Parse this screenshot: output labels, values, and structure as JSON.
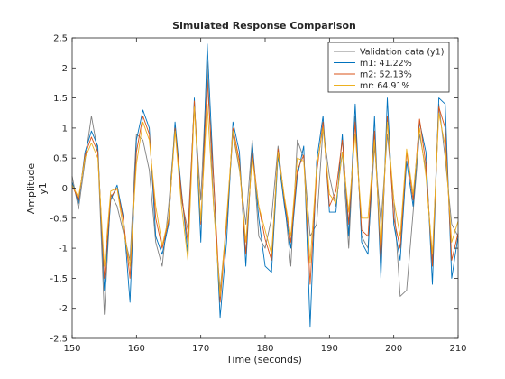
{
  "chart_data": {
    "type": "line",
    "title": "Simulated Response Comparison",
    "xlabel": "Time (seconds)",
    "ylabel": "Amplitude",
    "channel_label": "y1",
    "xlim": [
      150,
      210
    ],
    "ylim": [
      -2.5,
      2.5
    ],
    "xticks": [
      150,
      160,
      170,
      180,
      190,
      200,
      210
    ],
    "yticks": [
      -2.5,
      -2,
      -1.5,
      -1,
      -0.5,
      0,
      0.5,
      1,
      1.5,
      2,
      2.5
    ],
    "x": [
      150,
      151,
      152,
      153,
      154,
      155,
      156,
      157,
      158,
      159,
      160,
      161,
      162,
      163,
      164,
      165,
      166,
      167,
      168,
      169,
      170,
      171,
      172,
      173,
      174,
      175,
      176,
      177,
      178,
      179,
      180,
      181,
      182,
      183,
      184,
      185,
      186,
      187,
      188,
      189,
      190,
      191,
      192,
      193,
      194,
      195,
      196,
      197,
      198,
      199,
      200,
      201,
      202,
      203,
      204,
      205,
      206,
      207,
      208,
      209,
      210
    ],
    "legend_position": "top-right",
    "series": [
      {
        "name": "Validation data (y1)",
        "color": "#808080",
        "values": [
          0.2,
          -0.35,
          0.45,
          1.2,
          0.6,
          -2.1,
          -0.1,
          -0.3,
          -0.75,
          -1.2,
          0.9,
          0.8,
          0.3,
          -0.9,
          -1.3,
          -0.3,
          1.0,
          -0.2,
          -0.7,
          1.4,
          -0.2,
          2.1,
          -0.3,
          -1.7,
          -0.6,
          0.9,
          0.3,
          -0.6,
          0.8,
          -0.8,
          -1.0,
          -0.5,
          0.7,
          -0.2,
          -1.3,
          0.8,
          0.5,
          -0.8,
          -0.6,
          1.0,
          0.2,
          -0.3,
          0.6,
          -1.0,
          1.2,
          -0.8,
          -1.0,
          0.7,
          -0.6,
          0.9,
          -0.2,
          -1.8,
          -1.7,
          -0.4,
          0.9,
          0.3,
          -1.2,
          1.4,
          0.5,
          -0.6,
          -0.8
        ]
      },
      {
        "name": "m1: 41.22%",
        "color": "#0072BD",
        "values": [
          0.1,
          -0.25,
          0.6,
          0.95,
          0.7,
          -1.7,
          -0.2,
          0.05,
          -0.5,
          -1.9,
          0.8,
          1.3,
          1.0,
          -0.8,
          -1.1,
          -0.6,
          1.1,
          -0.05,
          -1.1,
          1.5,
          -0.9,
          2.4,
          0.15,
          -2.15,
          -0.9,
          1.1,
          0.6,
          -1.3,
          0.75,
          -0.5,
          -1.3,
          -1.4,
          0.55,
          -0.3,
          -1.0,
          0.2,
          0.7,
          -2.3,
          0.45,
          1.2,
          -0.4,
          -0.4,
          0.9,
          -0.8,
          1.4,
          -0.9,
          -1.1,
          1.2,
          -1.5,
          1.5,
          -0.6,
          -1.2,
          0.45,
          -0.3,
          1.1,
          0.6,
          -1.6,
          1.5,
          1.4,
          -1.5,
          -0.8
        ]
      },
      {
        "name": "m2: 52.13%",
        "color": "#D95319",
        "values": [
          0.05,
          -0.2,
          0.55,
          0.85,
          0.6,
          -1.5,
          -0.15,
          0.0,
          -0.55,
          -1.5,
          0.6,
          1.2,
          0.9,
          -0.5,
          -1.0,
          -0.55,
          1.0,
          -0.1,
          -0.9,
          1.45,
          -0.6,
          1.8,
          0.15,
          -1.9,
          -0.6,
          1.0,
          0.45,
          -1.1,
          0.6,
          -0.3,
          -0.85,
          -1.2,
          0.65,
          -0.2,
          -0.9,
          0.3,
          0.55,
          -1.6,
          0.25,
          1.1,
          -0.3,
          -0.05,
          0.8,
          -0.6,
          1.1,
          -0.7,
          -0.8,
          0.95,
          -1.2,
          1.2,
          -0.5,
          -1.0,
          0.6,
          -0.2,
          1.15,
          0.4,
          -1.3,
          1.35,
          1.0,
          -1.2,
          -0.75
        ]
      },
      {
        "name": "mr: 64.91%",
        "color": "#EDB120",
        "values": [
          0.05,
          -0.15,
          0.5,
          0.75,
          0.5,
          -1.3,
          -0.05,
          0.0,
          -0.7,
          -1.3,
          0.4,
          1.1,
          0.8,
          -0.3,
          -0.95,
          -0.5,
          0.95,
          -0.3,
          -1.2,
          1.35,
          -0.55,
          1.4,
          -0.3,
          -1.8,
          -0.5,
          0.95,
          0.35,
          -0.9,
          0.5,
          -0.3,
          -0.7,
          -1.1,
          0.6,
          -0.15,
          -0.8,
          0.5,
          0.45,
          -1.25,
          0.35,
          1.0,
          -0.1,
          -0.25,
          0.6,
          -0.4,
          0.9,
          -0.5,
          -0.5,
          0.8,
          -1.0,
          1.1,
          -0.2,
          -0.8,
          0.65,
          -0.1,
          1.0,
          0.2,
          -1.1,
          1.25,
          0.7,
          -0.9,
          -0.55
        ]
      }
    ]
  }
}
